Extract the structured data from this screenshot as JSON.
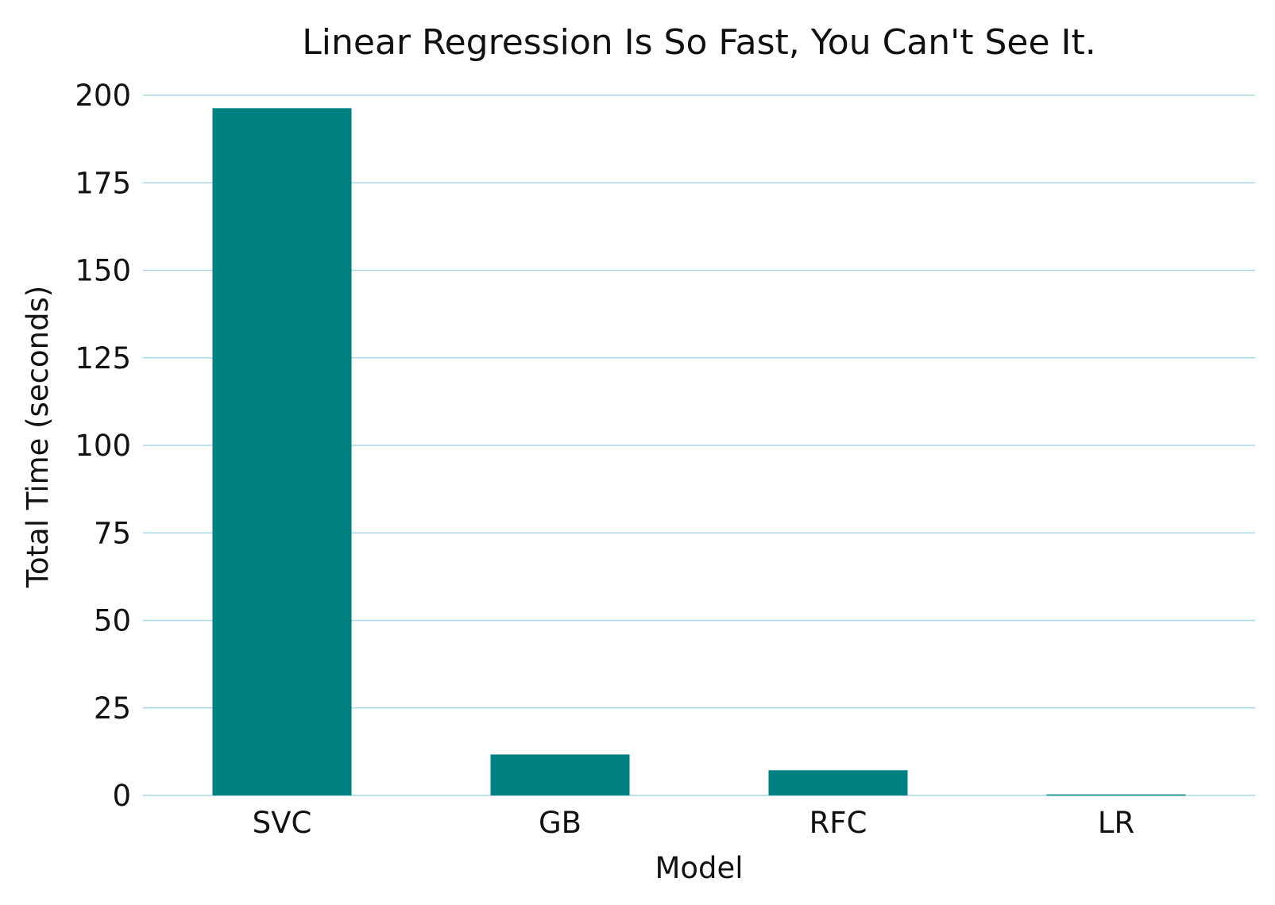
{
  "chart_data": {
    "type": "bar",
    "title": "Linear Regression Is So Fast, You Can't See It.",
    "xlabel": "Model",
    "ylabel": "Total Time (seconds)",
    "categories": [
      "SVC",
      "GB",
      "RFC",
      "LR"
    ],
    "values": [
      196.3,
      11.7,
      7.2,
      0.3
    ],
    "ylim": [
      0,
      200
    ],
    "yticks": [
      0,
      25,
      50,
      75,
      100,
      125,
      150,
      175,
      200
    ],
    "grid": true,
    "legend": "none",
    "colors": {
      "bar": "#008080",
      "grid": "#a8d8e6"
    }
  }
}
